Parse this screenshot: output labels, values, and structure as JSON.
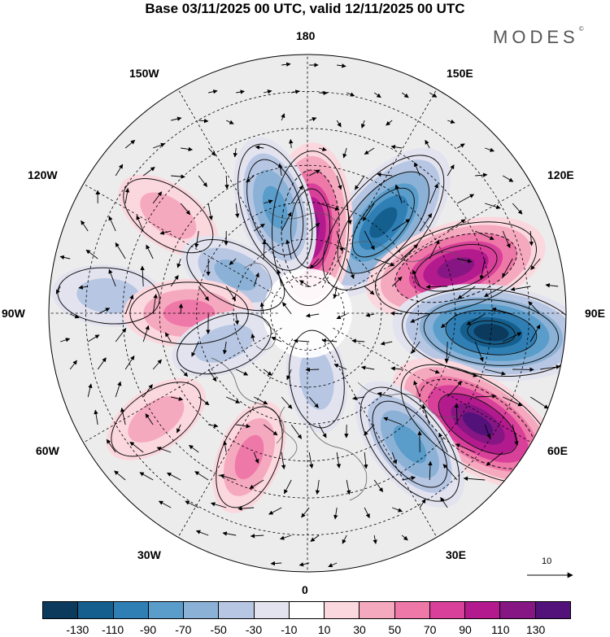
{
  "title": "Base 03/11/2025 00 UTC, valid 12/11/2025 00 UTC",
  "brand": "MODES",
  "brand_mark": "©",
  "longitude_labels": {
    "top": "180",
    "bottom": "0",
    "left": "90W",
    "right": "90E",
    "upper_left_1": "150W",
    "upper_left_2": "120W",
    "lower_left_1": "60W",
    "lower_left_2": "30W",
    "upper_right_1": "150E",
    "upper_right_2": "120E",
    "lower_right_1": "60E",
    "lower_right_2": "30E"
  },
  "reference_vector": {
    "label": "10"
  },
  "colorbar": {
    "colors": [
      "#0c3a5c",
      "#155f8e",
      "#2f7fb5",
      "#5a9dcb",
      "#8bb2d6",
      "#b7c6e3",
      "#e3e3f0",
      "#ffffff",
      "#fbd7de",
      "#f5a9bf",
      "#ee78a7",
      "#d9409a",
      "#b31a8d",
      "#861684",
      "#53127a"
    ],
    "ticks": [
      "-130",
      "-110",
      "-90",
      "-70",
      "-50",
      "-30",
      "-10",
      "10",
      "30",
      "50",
      "70",
      "90",
      "110",
      "130"
    ]
  },
  "anomaly_centers": [
    {
      "name": "neg-135W",
      "lon": -140,
      "lat": 58,
      "value": -120
    },
    {
      "name": "pos-110W",
      "lon": -107,
      "lat": 48,
      "value": 125
    },
    {
      "name": "neg-85W",
      "lon": -84,
      "lat": 40,
      "value": -140
    },
    {
      "name": "pos-60W",
      "lon": -57,
      "lat": 35,
      "value": 135
    },
    {
      "name": "neg-40W",
      "lon": -38,
      "lat": 45,
      "value": -85
    },
    {
      "name": "pos-175E",
      "lon": -178,
      "lat": 67,
      "value": 110
    },
    {
      "name": "neg-160E",
      "lon": 163,
      "lat": 60,
      "value": -80
    },
    {
      "name": "pos-125E",
      "lon": 125,
      "lat": 44,
      "value": 45
    },
    {
      "name": "neg-115E",
      "lon": 118,
      "lat": 68,
      "value": -50
    },
    {
      "name": "neg-95E",
      "lon": 95,
      "lat": 36,
      "value": -45
    },
    {
      "name": "pos-90E",
      "lon": 90,
      "lat": 58,
      "value": 65
    },
    {
      "name": "neg-70E",
      "lon": 70,
      "lat": 66,
      "value": -40
    },
    {
      "name": "pos-55E",
      "lon": 55,
      "lat": 40,
      "value": 45
    },
    {
      "name": "pos-30E",
      "lon": 22,
      "lat": 48,
      "value": 50
    },
    {
      "name": "neg-5W",
      "lon": -8,
      "lat": 72,
      "value": -40
    }
  ]
}
